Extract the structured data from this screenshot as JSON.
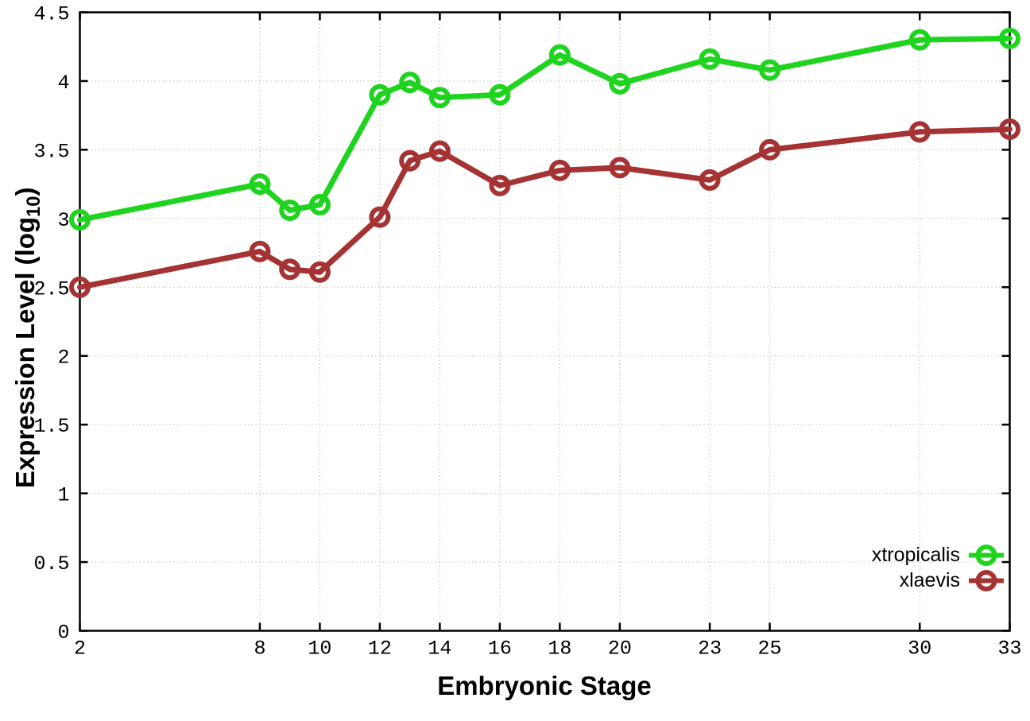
{
  "figure": {
    "xlabel": "Embryonic Stage",
    "ylabel_pre": "Expression Level (log",
    "ylabel_sub": "10",
    "ylabel_post": ")",
    "background_color": "#ffffff",
    "text_color": "#000000",
    "grid_color": "#bdbdbd"
  },
  "chart_data": {
    "type": "line",
    "title": "",
    "xlabel": "Embryonic Stage",
    "ylabel": "Expression Level (log10)",
    "x": [
      2,
      8,
      9,
      10,
      12,
      13,
      14,
      16,
      18,
      20,
      23,
      25,
      30,
      33
    ],
    "xticks": [
      2,
      8,
      10,
      12,
      14,
      16,
      18,
      20,
      23,
      25,
      30,
      33
    ],
    "yticks": [
      0,
      0.5,
      1,
      1.5,
      2,
      2.5,
      3,
      3.5,
      4,
      4.5
    ],
    "xlim": [
      2,
      33
    ],
    "ylim": [
      0,
      4.5
    ],
    "grid": true,
    "grid_style": "dotted",
    "marker": "open-circle",
    "legend_position": "bottom-right-inside",
    "series": [
      {
        "name": "xtropicalis",
        "color": "#1ed41e",
        "values": [
          2.99,
          3.25,
          3.06,
          3.1,
          3.9,
          3.99,
          3.88,
          3.9,
          4.19,
          3.98,
          4.16,
          4.08,
          4.3,
          4.31
        ]
      },
      {
        "name": "xlaevis",
        "color": "#a63333",
        "values": [
          2.5,
          2.76,
          2.63,
          2.61,
          3.01,
          3.42,
          3.49,
          3.24,
          3.35,
          3.37,
          3.28,
          3.5,
          3.63,
          3.65
        ]
      }
    ]
  }
}
